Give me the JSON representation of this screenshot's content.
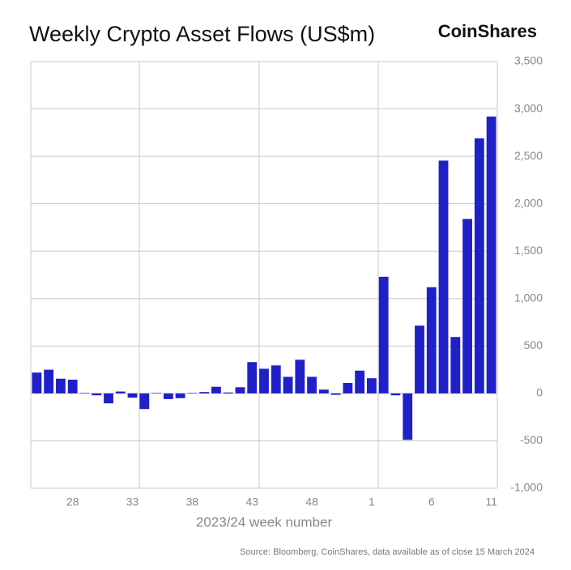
{
  "chart_data": {
    "type": "bar",
    "title": "Weekly Crypto Asset Flows (US$m)",
    "brand": "CoinShares",
    "x_label": "2023/24 week number",
    "source": "Source: Bloomberg, CoinShares, data available as of close 15 March 2024",
    "categories": [
      null,
      null,
      null,
      "28",
      null,
      null,
      null,
      null,
      "33",
      null,
      null,
      null,
      null,
      "38",
      null,
      null,
      null,
      null,
      "43",
      null,
      null,
      null,
      null,
      "48",
      null,
      null,
      null,
      null,
      "1",
      null,
      null,
      null,
      null,
      "6",
      null,
      null,
      null,
      null,
      "11"
    ],
    "values": [
      220,
      250,
      155,
      145,
      5,
      -20,
      -105,
      20,
      -45,
      -165,
      5,
      -60,
      -50,
      5,
      15,
      70,
      10,
      65,
      330,
      260,
      295,
      175,
      355,
      175,
      40,
      -15,
      110,
      240,
      160,
      1230,
      -20,
      -490,
      715,
      1120,
      2455,
      595,
      1840,
      2690,
      2920
    ],
    "color": "#2020c8",
    "ylim": [
      -1000,
      3500
    ],
    "yticks": [
      {
        "value": -1000,
        "label": "-1,000"
      },
      -500,
      0,
      500,
      {
        "value": 1000,
        "label": "1,000"
      },
      {
        "value": 1500,
        "label": "1,500"
      },
      {
        "value": 2000,
        "label": "2,000"
      },
      {
        "value": 2500,
        "label": "2,500"
      },
      {
        "value": 3000,
        "label": "3,000"
      },
      {
        "value": 3500,
        "label": "3,500"
      }
    ],
    "grid": true
  }
}
